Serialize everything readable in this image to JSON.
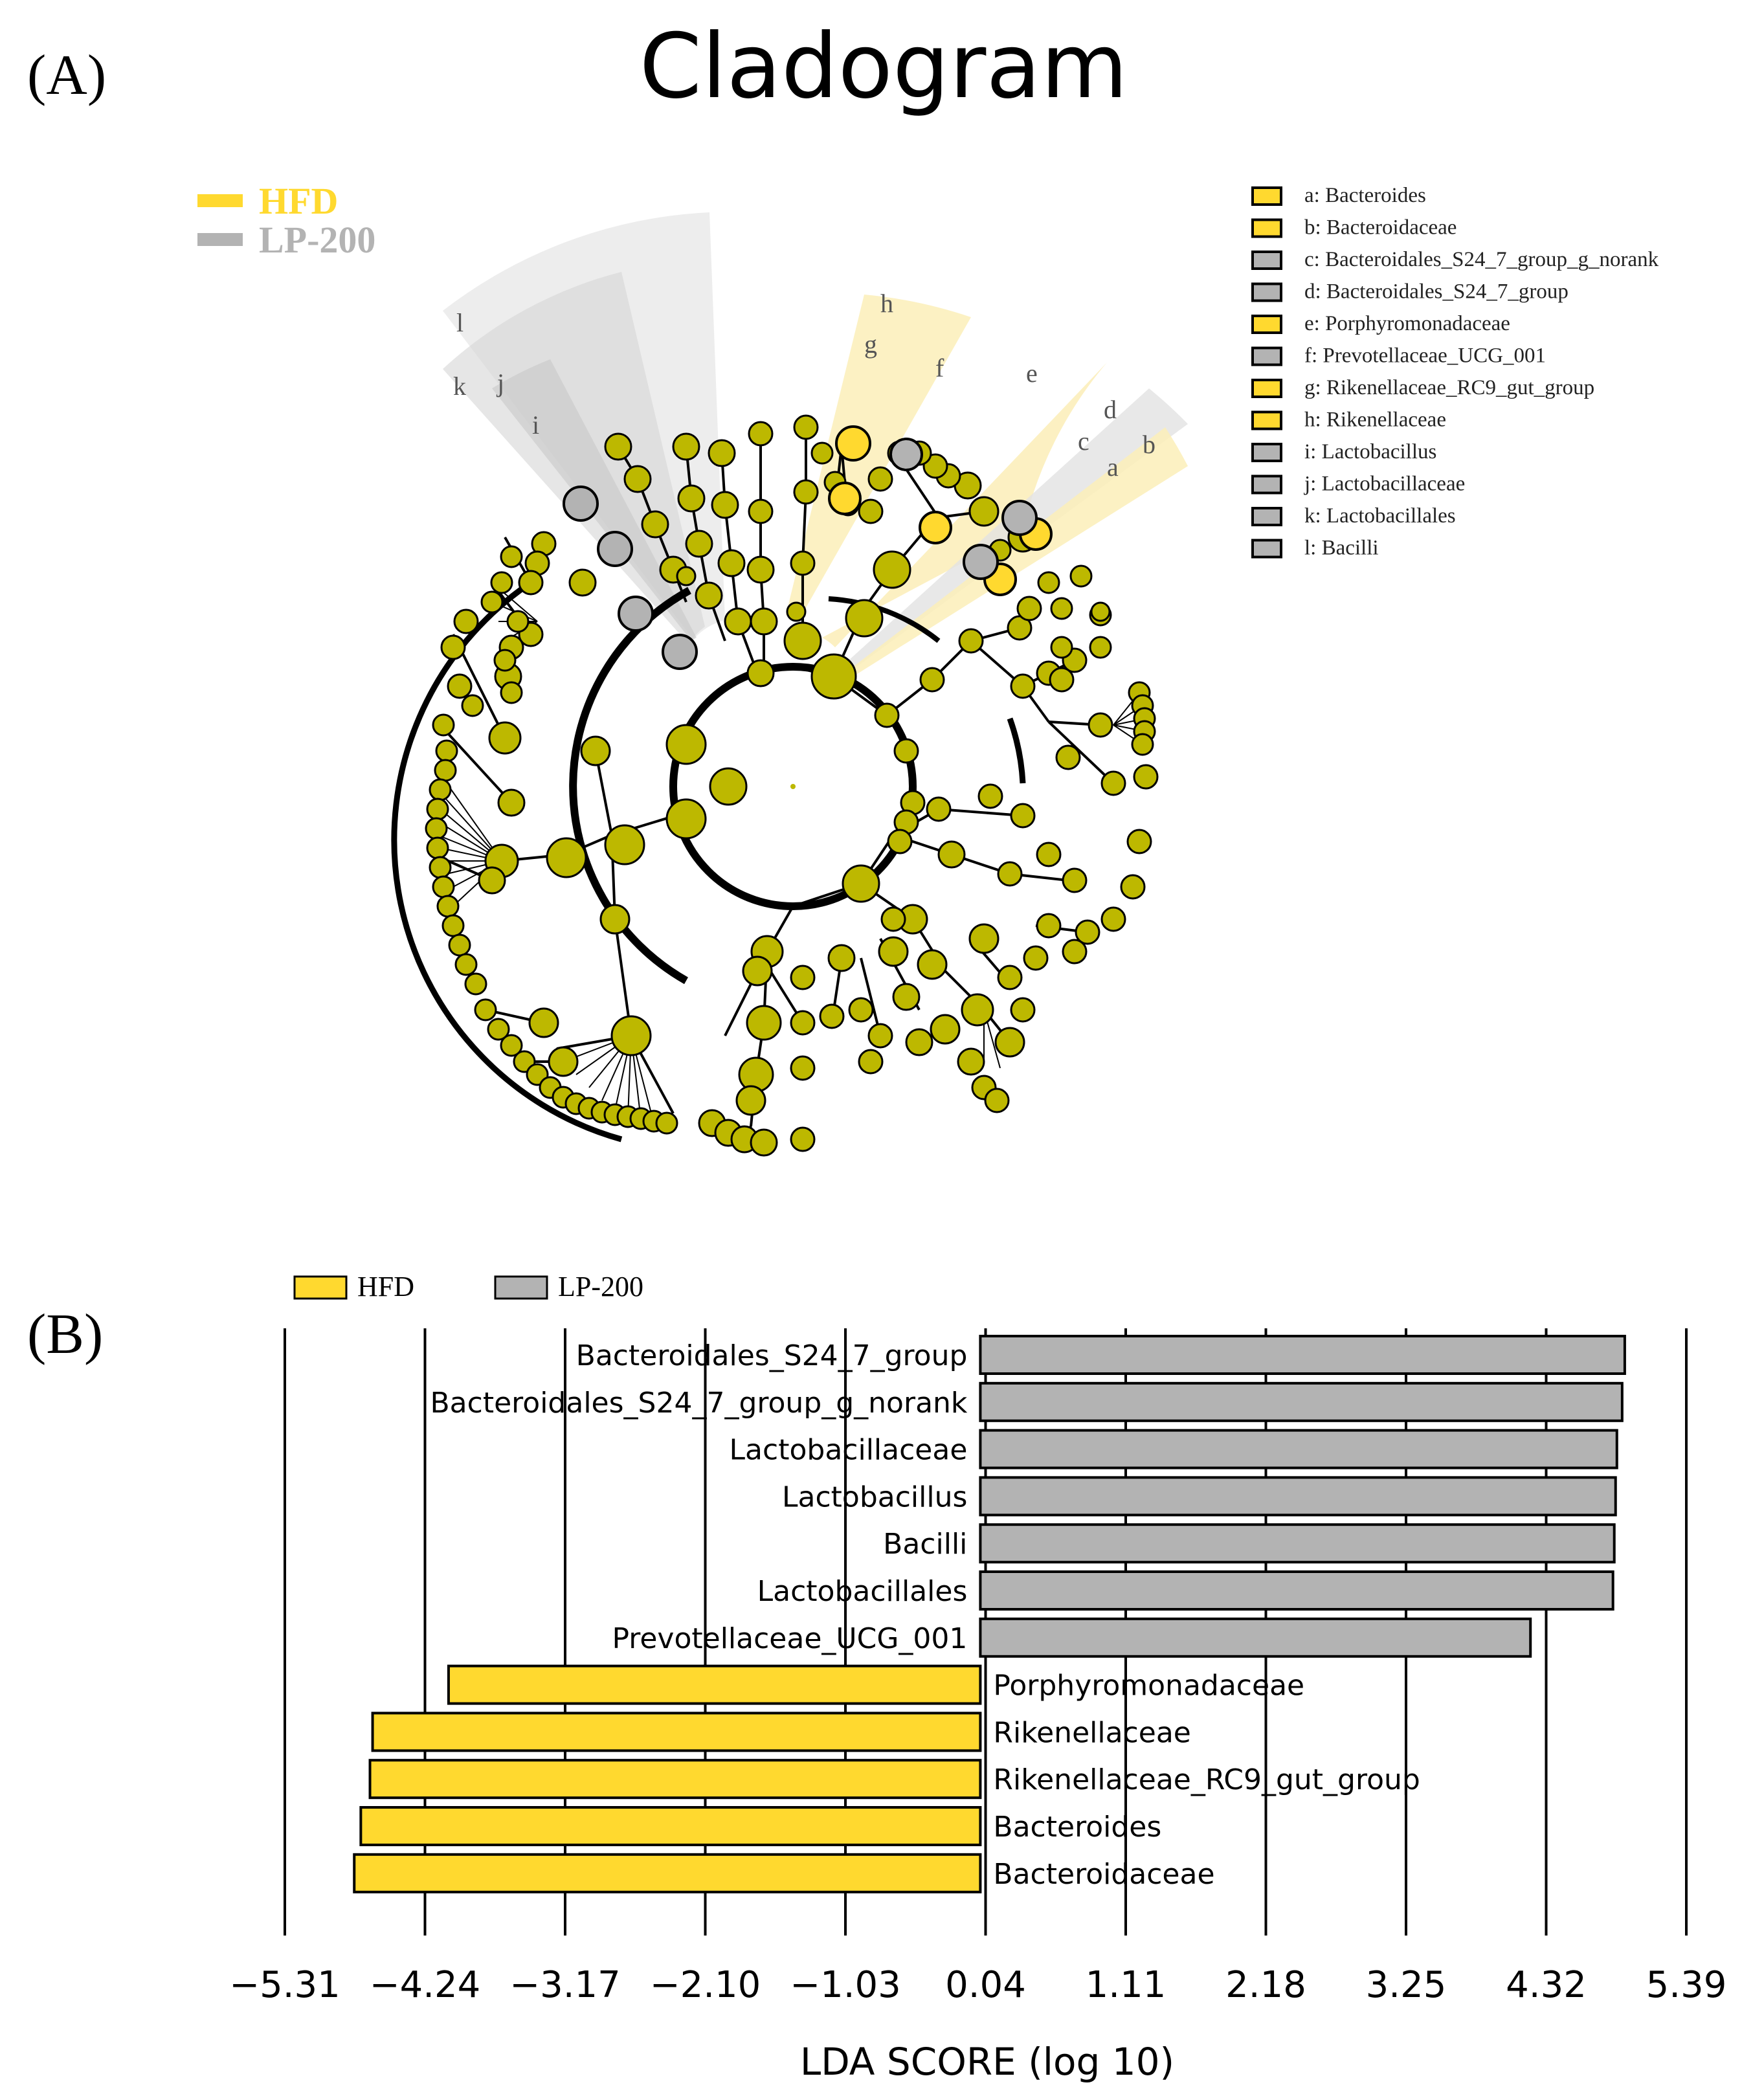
{
  "panel_a": {
    "panel_label": "(A)",
    "title": "Cladogram",
    "groups": [
      {
        "name": "HFD",
        "color": "#FFD92F"
      },
      {
        "name": "LP-200",
        "color": "#B3B3B3"
      }
    ],
    "node_color": "#BDB800",
    "legend_entries": [
      {
        "key": "a",
        "label": "a: Bacteroides",
        "group": "HFD"
      },
      {
        "key": "b",
        "label": "b: Bacteroidaceae",
        "group": "HFD"
      },
      {
        "key": "c",
        "label": "c: Bacteroidales_S24_7_group_g_norank",
        "group": "LP-200"
      },
      {
        "key": "d",
        "label": "d: Bacteroidales_S24_7_group",
        "group": "LP-200"
      },
      {
        "key": "e",
        "label": "e: Porphyromonadaceae",
        "group": "HFD"
      },
      {
        "key": "f",
        "label": "f: Prevotellaceae_UCG_001",
        "group": "LP-200"
      },
      {
        "key": "g",
        "label": "g: Rikenellaceae_RC9_gut_group",
        "group": "HFD"
      },
      {
        "key": "h",
        "label": "h: Rikenellaceae",
        "group": "HFD"
      },
      {
        "key": "i",
        "label": "i: Lactobacillus",
        "group": "LP-200"
      },
      {
        "key": "j",
        "label": "j: Lactobacillaceae",
        "group": "LP-200"
      },
      {
        "key": "k",
        "label": "k: Lactobacillales",
        "group": "LP-200"
      },
      {
        "key": "l",
        "label": "l: Bacilli",
        "group": "LP-200"
      }
    ]
  },
  "panel_b": {
    "panel_label": "(B)"
  },
  "chart_data": {
    "type": "bar",
    "orientation": "horizontal",
    "xlabel": "LDA SCORE (log 10)",
    "xlim": [
      -5.31,
      5.39
    ],
    "xticks": [
      -5.31,
      -4.24,
      -3.17,
      -2.1,
      -1.03,
      0.04,
      1.11,
      2.18,
      3.25,
      4.32,
      5.39
    ],
    "xtick_labels": [
      "−5.31",
      "−4.24",
      "−3.17",
      "−2.10",
      "−1.03",
      "0.04",
      "1.11",
      "2.18",
      "3.25",
      "4.32",
      "5.39"
    ],
    "legend": [
      {
        "name": "HFD",
        "color": "#FFD92F"
      },
      {
        "name": "LP-200",
        "color": "#B3B3B3"
      }
    ],
    "categories": [
      "Bacteroidales_S24_7_group",
      "Bacteroidales_S24_7_group_g_norank",
      "Lactobacillaceae",
      "Lactobacillus",
      "Bacilli",
      "Lactobacillales",
      "Prevotellaceae_UCG_001",
      "Porphyromonadaceae",
      "Rikenellaceae",
      "Rikenellaceae_RC9_gut_group",
      "Bacteroides",
      "Bacteroidaceae"
    ],
    "values": [
      4.92,
      4.9,
      4.86,
      4.85,
      4.84,
      4.83,
      4.2,
      -4.06,
      -4.64,
      -4.66,
      -4.73,
      -4.78
    ],
    "groups": [
      "LP-200",
      "LP-200",
      "LP-200",
      "LP-200",
      "LP-200",
      "LP-200",
      "LP-200",
      "HFD",
      "HFD",
      "HFD",
      "HFD",
      "HFD"
    ]
  }
}
